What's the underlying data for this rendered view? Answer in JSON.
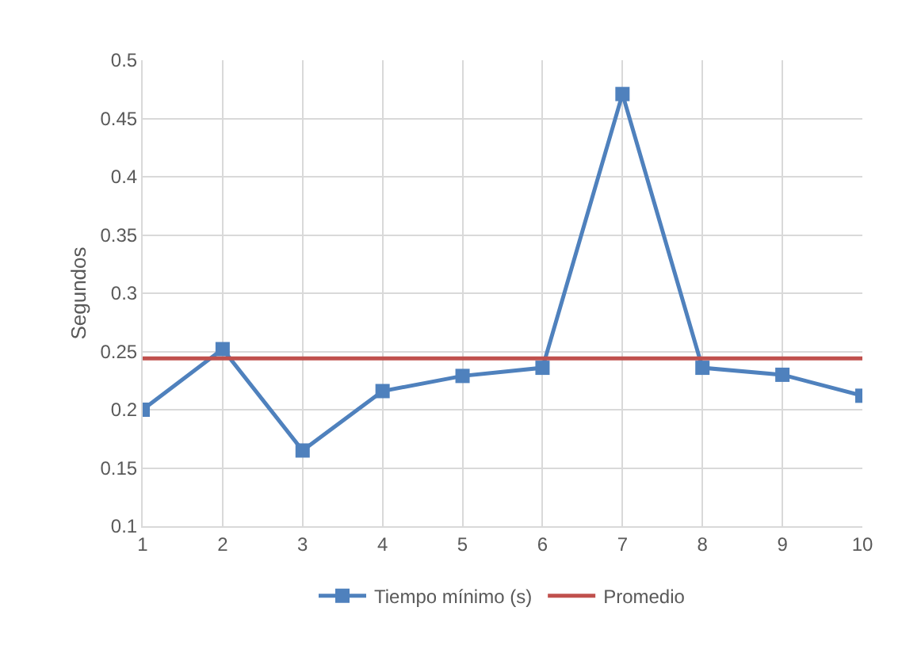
{
  "chart_data": {
    "type": "line",
    "ylabel": "Segundos",
    "x": [
      1,
      2,
      3,
      4,
      5,
      6,
      7,
      8,
      9,
      10
    ],
    "series": [
      {
        "name": "Tiempo mínimo (s)",
        "color": "#4f81bd",
        "values": [
          0.2,
          0.252,
          0.165,
          0.216,
          0.229,
          0.236,
          0.471,
          0.236,
          0.23,
          0.212
        ]
      }
    ],
    "ref_lines": [
      {
        "axis": "y",
        "value": 0.244,
        "label": "Promedio",
        "color": "#c0504d"
      }
    ],
    "xlim": [
      1,
      10
    ],
    "xticks": [
      1,
      2,
      3,
      4,
      5,
      6,
      7,
      8,
      9,
      10
    ],
    "ylim": [
      0.1,
      0.5
    ],
    "yticks": [
      0.1,
      0.15,
      0.2,
      0.25,
      0.3,
      0.35,
      0.4,
      0.45,
      0.5
    ],
    "grid": true,
    "legend": "bottom",
    "marker": "square",
    "line_style": "solid"
  }
}
